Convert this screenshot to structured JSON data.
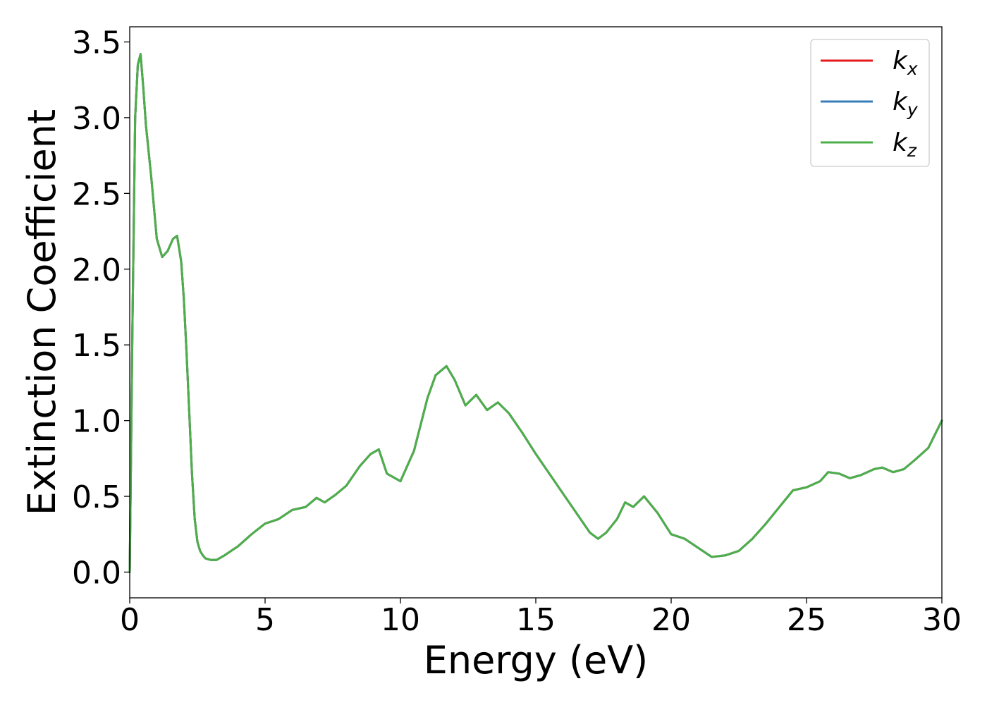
{
  "chart_data": {
    "type": "line",
    "xlabel": "Energy (eV)",
    "ylabel": "Extinction Coefficient",
    "xlim": [
      0,
      30
    ],
    "ylim": [
      -0.17,
      3.6
    ],
    "xticks": [
      0,
      5,
      10,
      15,
      20,
      25,
      30
    ],
    "xtick_labels": [
      "0",
      "5",
      "10",
      "15",
      "20",
      "25",
      "30"
    ],
    "yticks": [
      0.0,
      0.5,
      1.0,
      1.5,
      2.0,
      2.5,
      3.0,
      3.5
    ],
    "ytick_labels": [
      "0.0",
      "0.5",
      "1.0",
      "1.5",
      "2.0",
      "2.5",
      "3.0",
      "3.5"
    ],
    "grid": false,
    "legend_position": "top-right",
    "x": [
      0,
      0.1,
      0.2,
      0.3,
      0.4,
      0.5,
      0.6,
      0.8,
      1.0,
      1.2,
      1.4,
      1.6,
      1.75,
      1.9,
      2.0,
      2.1,
      2.2,
      2.3,
      2.4,
      2.5,
      2.6,
      2.7,
      2.8,
      3.0,
      3.2,
      3.5,
      4.0,
      4.5,
      5.0,
      5.5,
      6.0,
      6.5,
      6.9,
      7.2,
      7.6,
      8.0,
      8.5,
      8.9,
      9.2,
      9.5,
      10.0,
      10.5,
      11.0,
      11.3,
      11.7,
      12.0,
      12.4,
      12.8,
      13.2,
      13.6,
      14.0,
      14.5,
      15.0,
      15.5,
      16.0,
      16.5,
      17.0,
      17.3,
      17.6,
      18.0,
      18.3,
      18.6,
      19.0,
      19.5,
      20.0,
      20.5,
      21.0,
      21.5,
      22.0,
      22.5,
      23.0,
      23.5,
      24.0,
      24.5,
      25.0,
      25.5,
      25.8,
      26.2,
      26.6,
      27.0,
      27.5,
      27.8,
      28.2,
      28.6,
      29.0,
      29.5,
      30.0
    ],
    "series": [
      {
        "name": "k_x",
        "label_base": "k",
        "label_sub": "x",
        "color": "#e41a1c",
        "y": [
          0.0,
          1.6,
          3.0,
          3.35,
          3.42,
          3.2,
          2.95,
          2.6,
          2.2,
          2.08,
          2.12,
          2.2,
          2.22,
          2.05,
          1.8,
          1.45,
          1.05,
          0.65,
          0.35,
          0.2,
          0.14,
          0.11,
          0.09,
          0.08,
          0.08,
          0.11,
          0.17,
          0.25,
          0.32,
          0.35,
          0.41,
          0.43,
          0.49,
          0.46,
          0.51,
          0.57,
          0.7,
          0.78,
          0.81,
          0.65,
          0.6,
          0.8,
          1.15,
          1.3,
          1.36,
          1.27,
          1.1,
          1.17,
          1.07,
          1.12,
          1.05,
          0.92,
          0.78,
          0.65,
          0.52,
          0.39,
          0.26,
          0.22,
          0.26,
          0.35,
          0.46,
          0.43,
          0.5,
          0.39,
          0.25,
          0.22,
          0.16,
          0.1,
          0.11,
          0.14,
          0.22,
          0.32,
          0.43,
          0.54,
          0.56,
          0.6,
          0.66,
          0.65,
          0.62,
          0.64,
          0.68,
          0.69,
          0.66,
          0.68,
          0.74,
          0.82,
          1.0
        ]
      },
      {
        "name": "k_y",
        "label_base": "k",
        "label_sub": "y",
        "color": "#377eb8",
        "y": [
          0.0,
          1.6,
          3.0,
          3.35,
          3.42,
          3.2,
          2.95,
          2.6,
          2.2,
          2.08,
          2.12,
          2.2,
          2.22,
          2.05,
          1.8,
          1.45,
          1.05,
          0.65,
          0.35,
          0.2,
          0.14,
          0.11,
          0.09,
          0.08,
          0.08,
          0.11,
          0.17,
          0.25,
          0.32,
          0.35,
          0.41,
          0.43,
          0.49,
          0.46,
          0.51,
          0.57,
          0.7,
          0.78,
          0.81,
          0.65,
          0.6,
          0.8,
          1.15,
          1.3,
          1.36,
          1.27,
          1.1,
          1.17,
          1.07,
          1.12,
          1.05,
          0.92,
          0.78,
          0.65,
          0.52,
          0.39,
          0.26,
          0.22,
          0.26,
          0.35,
          0.46,
          0.43,
          0.5,
          0.39,
          0.25,
          0.22,
          0.16,
          0.1,
          0.11,
          0.14,
          0.22,
          0.32,
          0.43,
          0.54,
          0.56,
          0.6,
          0.66,
          0.65,
          0.62,
          0.64,
          0.68,
          0.69,
          0.66,
          0.68,
          0.74,
          0.82,
          1.0
        ]
      },
      {
        "name": "k_z",
        "label_base": "k",
        "label_sub": "z",
        "color": "#4daf4a",
        "y": [
          0.0,
          1.6,
          3.0,
          3.35,
          3.42,
          3.2,
          2.95,
          2.6,
          2.2,
          2.08,
          2.12,
          2.2,
          2.22,
          2.05,
          1.8,
          1.45,
          1.05,
          0.65,
          0.35,
          0.2,
          0.14,
          0.11,
          0.09,
          0.08,
          0.08,
          0.11,
          0.17,
          0.25,
          0.32,
          0.35,
          0.41,
          0.43,
          0.49,
          0.46,
          0.51,
          0.57,
          0.7,
          0.78,
          0.81,
          0.65,
          0.6,
          0.8,
          1.15,
          1.3,
          1.36,
          1.27,
          1.1,
          1.17,
          1.07,
          1.12,
          1.05,
          0.92,
          0.78,
          0.65,
          0.52,
          0.39,
          0.26,
          0.22,
          0.26,
          0.35,
          0.46,
          0.43,
          0.5,
          0.39,
          0.25,
          0.22,
          0.16,
          0.1,
          0.11,
          0.14,
          0.22,
          0.32,
          0.43,
          0.54,
          0.56,
          0.6,
          0.66,
          0.65,
          0.62,
          0.64,
          0.68,
          0.69,
          0.66,
          0.68,
          0.74,
          0.82,
          1.0
        ]
      }
    ]
  }
}
